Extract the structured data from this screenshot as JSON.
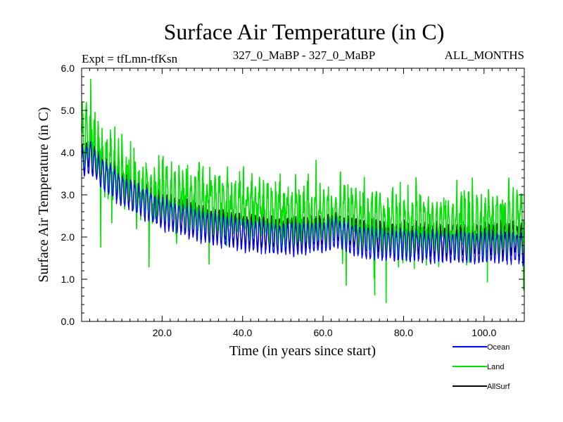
{
  "chart_data": {
    "type": "line",
    "title": "Surface Air Temperature (in C)",
    "subtitle_left": "Expt = tfLmn-tfKsn",
    "subtitle_center": "327_0_MaBP - 327_0_MaBP",
    "subtitle_right": "ALL_MONTHS",
    "xlabel": "Time (in years since start)",
    "ylabel": "Surface Air Temperature (in C)",
    "xlim": [
      0,
      110
    ],
    "ylim": [
      0,
      6
    ],
    "x_ticks": [
      20,
      40,
      60,
      80,
      100
    ],
    "x_tick_labels": [
      "20.0",
      "40.0",
      "60.0",
      "80.0",
      "100.0"
    ],
    "y_ticks": [
      0,
      1,
      2,
      3,
      4,
      5,
      6
    ],
    "y_tick_labels": [
      "0.0",
      "1.0",
      "2.0",
      "3.0",
      "4.0",
      "5.0",
      "6.0"
    ],
    "grid": false,
    "legend_position": "bottom-right",
    "samples_per_year": 12,
    "series": [
      {
        "name": "Ocean",
        "color": "#0000ff",
        "trend_x": [
          0,
          2,
          5,
          10,
          20,
          30,
          40,
          50,
          60,
          63,
          70,
          80,
          90,
          100,
          110
        ],
        "trend_y": [
          3.7,
          3.9,
          3.5,
          3.1,
          2.55,
          2.25,
          2.05,
          1.95,
          2.0,
          2.1,
          1.85,
          1.8,
          1.75,
          1.75,
          1.75
        ],
        "seasonal_amplitude": 0.35,
        "noise": 0.06
      },
      {
        "name": "Land",
        "color": "#00e000",
        "trend_x": [
          0,
          2,
          5,
          10,
          20,
          30,
          40,
          50,
          60,
          70,
          80,
          90,
          100,
          110
        ],
        "trend_y": [
          4.3,
          4.4,
          3.9,
          3.3,
          2.95,
          2.85,
          2.75,
          2.65,
          2.5,
          2.45,
          2.3,
          2.3,
          2.3,
          2.4
        ],
        "seasonal_amplitude": 0.5,
        "noise": 0.35
      },
      {
        "name": "AllSurf",
        "color": "#000000",
        "trend_x": [
          0,
          2,
          5,
          10,
          20,
          30,
          40,
          50,
          60,
          63,
          70,
          80,
          90,
          100,
          110
        ],
        "trend_y": [
          3.85,
          4.05,
          3.6,
          3.2,
          2.65,
          2.35,
          2.15,
          2.1,
          2.15,
          2.25,
          2.05,
          1.95,
          1.9,
          1.95,
          1.95
        ],
        "seasonal_amplitude": 0.35,
        "noise": 0.07
      }
    ]
  }
}
